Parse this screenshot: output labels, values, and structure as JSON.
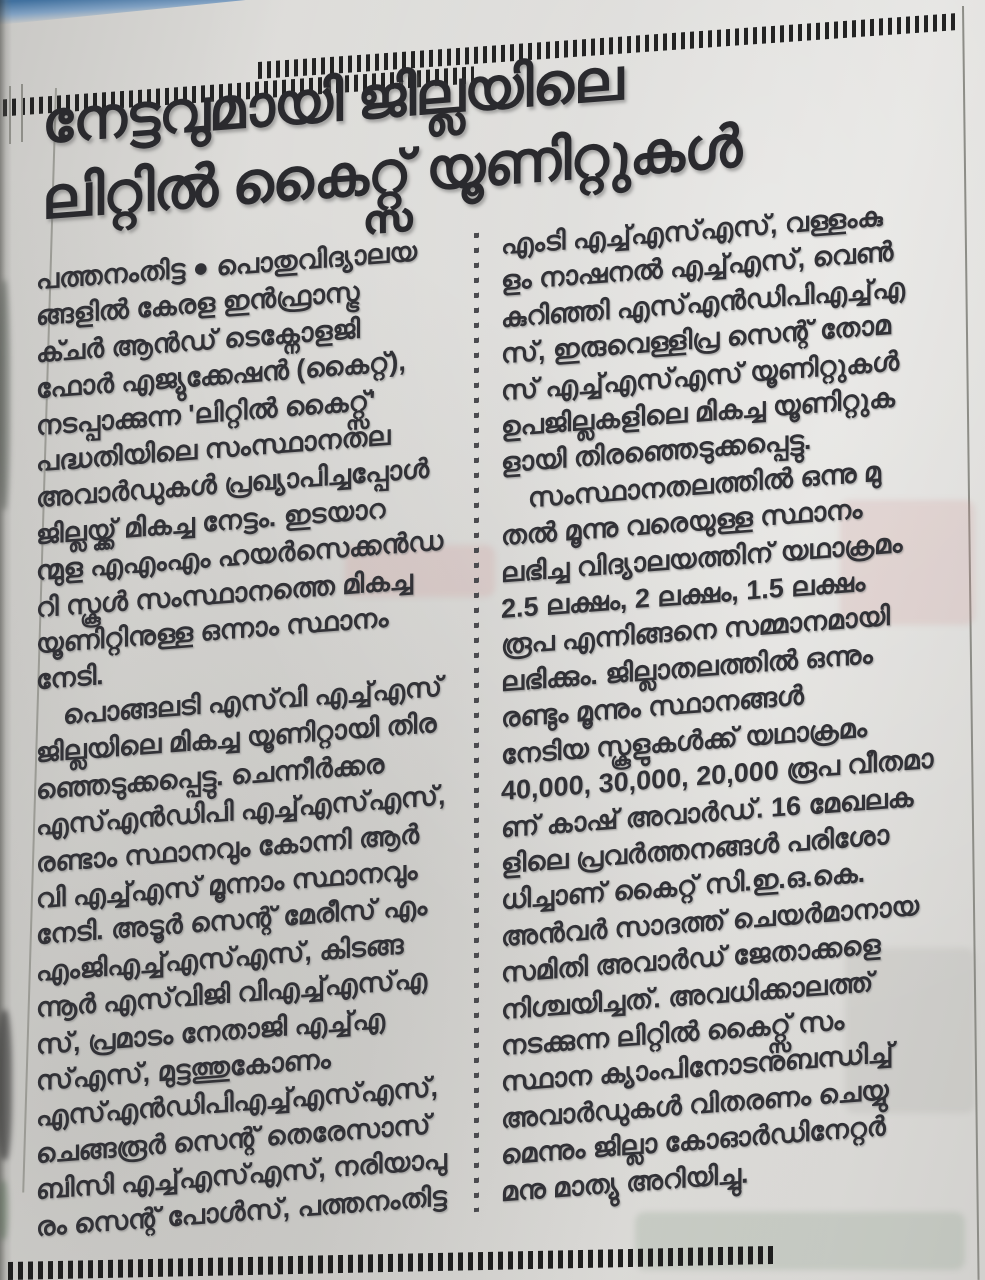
{
  "article": {
    "headline_lines": [
      "നേട്ടവുമായി ജില്ലയിലെ",
      "ലിറ്റിൽ കൈറ്റ്സ് യൂണിറ്റുകൾ"
    ],
    "dateline": "പത്തനംതിട്ട",
    "columns": [
      {
        "lines": [
          "പത്തനംതിട്ട ● പൊതുവിദ്യാലയ",
          "ങ്ങളിൽ കേരള ഇൻഫ്രാസ്ട്ര",
          "ക്ചർ ആൻഡ് ടെക്നോളജി",
          "ഫോർ എജ്യുക്കേഷൻ (കൈറ്റ്),",
          "നടപ്പാക്കുന്ന 'ലിറ്റിൽ കൈറ്റ്സ്'",
          "പദ്ധതിയിലെ സംസ്ഥാനതല",
          "അവാർഡുകൾ പ്രഖ്യാപിച്ചപ്പോൾ",
          "ജില്ലയ്ക്ക് മികച്ച നേട്ടം. ഇടയാറ",
          "ന്മുള എഎംഎം ഹയർസെക്കൻഡ",
          "റി സ്കൂൾ സംസ്ഥാനത്തെ മികച്ച",
          "യൂണിറ്റിനുള്ള ഒന്നാം സ്ഥാനം",
          "നേടി.",
          " പൊങ്ങലടി എസ്‌വി എച്ച്എസ്",
          "ജില്ലയിലെ മികച്ച യൂണിറ്റായി തിര",
          "ഞ്ഞെടുക്കപ്പെട്ടു. ചെന്നീർക്കര",
          "എസ്എൻഡിപി എച്ച്എസ്എസ്,",
          "രണ്ടാം സ്ഥാനവും കോന്നി ആർ",
          "വി എച്ച്എസ് മൂന്നാം സ്ഥാനവും",
          "നേടി. അടൂർ സെന്റ് മേരീസ് എം",
          "എംജിഎച്ച്എസ്എസ്, കിടങ്ങ",
          "ന്നൂർ എസ്‌വിജി വിഎച്ച്എസ്എ",
          "സ്, പ്രമാടം നേതാജി എച്ച്എ",
          "സ്എസ്, മുട്ടത്തുകോണം",
          "എസ്എൻഡിപിഎച്ച്എസ്എസ്,",
          "ചെങ്ങരൂർ സെന്റ് തെരേസാസ്",
          "ബിസി എച്ച്എസ്എസ്, നരിയാപു",
          "രം സെന്റ് പോൾസ്, പത്തനംതിട്ട"
        ]
      },
      {
        "lines": [
          "എംടി എച്ച്എസ്എസ്, വള്ളംകു",
          "ളം നാഷനൽ എച്ച്എസ്, വെൺ",
          "കുറിഞ്ഞി എസ്എൻഡിപിഎച്ച്എ",
          "സ്, ഇരുവെള്ളിപ്ര സെന്റ് തോമ",
          "സ് എച്ച്എസ്എസ് യൂണിറ്റുകൾ",
          "ഉപജില്ലകളിലെ മികച്ച യൂണിറ്റുക",
          "ളായി തിരഞ്ഞെടുക്കപ്പെട്ടു.",
          " സംസ്ഥാനതലത്തിൽ ഒന്നു മു",
          "തൽ മൂന്നു വരെയുള്ള സ്ഥാനം",
          "ലഭിച്ച വിദ്യാലയത്തിന് യഥാക്രമം",
          "2.5 ലക്ഷം, 2 ലക്ഷം, 1.5 ലക്ഷം",
          "രൂപ എന്നിങ്ങനെ സമ്മാനമായി",
          "ലഭിക്കും. ജില്ലാതലത്തിൽ ഒന്നും",
          "രണ്ടും മൂന്നും സ്ഥാനങ്ങൾ",
          "നേടിയ സ്കൂളുകൾക്ക് യഥാക്രമം",
          "40,000, 30,000, 20,000 രൂപ വീതമാ",
          "ണ് കാഷ് അവാർഡ്. 16 മേഖലക",
          "ളിലെ പ്രവർത്തനങ്ങൾ പരിശോ",
          "ധിച്ചാണ് കൈറ്റ് സി.ഇ.ഒ.കെ.",
          "അൻവർ സാദത്ത് ചെയർമാനായ",
          "സമിതി അവാർഡ് ജേതാക്കളെ",
          "നിശ്ചയിച്ചത്. അവധിക്കാലത്ത്",
          "നടക്കുന്ന ലിറ്റിൽ കൈറ്റ്സ് സം",
          "സ്ഥാന ക്യാംപിനോടനുബന്ധിച്ച്",
          "അവാർഡുകൾ വിതരണം ചെയ്യു",
          "മെന്നും ജില്ലാ കോഓർഡിനേറ്റർ",
          "മനു മാത്യു അറിയിച്ചു."
        ]
      }
    ]
  },
  "colors": {
    "paper": "#d9d8d5",
    "ink": "#323237",
    "page_edge_blue": "#3f6fa6"
  }
}
